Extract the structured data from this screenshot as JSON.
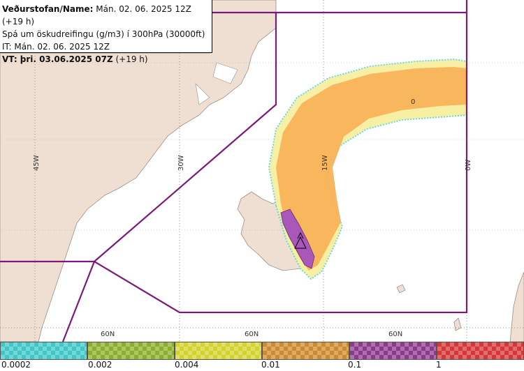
{
  "header": {
    "line1_bold": "Veðurstofan/Name:",
    "line1_rest": " Mán. 02. 06. 2025 12Z (+19 h)",
    "line2": "Spá um öskudreifingu (g/m3) í 300hPa (30000ft)",
    "line3": "IT: Mán. 02. 06. 2025 12Z",
    "line4_bold": "VT: þri. 03.06.2025 07Z",
    "line4_rest": " (+19 h)"
  },
  "grid_labels": {
    "lon_45w": "45W",
    "lon_30w": "30W",
    "lon_15w": "15W",
    "lon_0w": "0W",
    "lat_60n_a": "60N",
    "lat_60n_b": "60N",
    "lat_60n_c": "60N",
    "contour_0": "0"
  },
  "legend": {
    "labels": [
      "0.0002",
      "0.002",
      "0.004",
      "0.01",
      "0.1",
      "1"
    ],
    "colors": [
      "#3fc7c7",
      "#8bae2d",
      "#d4d32e",
      "#d08a2e",
      "#8d3a8d",
      "#d63636"
    ]
  },
  "colors": {
    "land": "#efdfd2",
    "sea": "#ffffff",
    "zone_outline": "#7a1a7a",
    "ash_light": "#f7f0a0",
    "ash_orange": "#f8b25a",
    "ash_purple": "#a957b8"
  }
}
